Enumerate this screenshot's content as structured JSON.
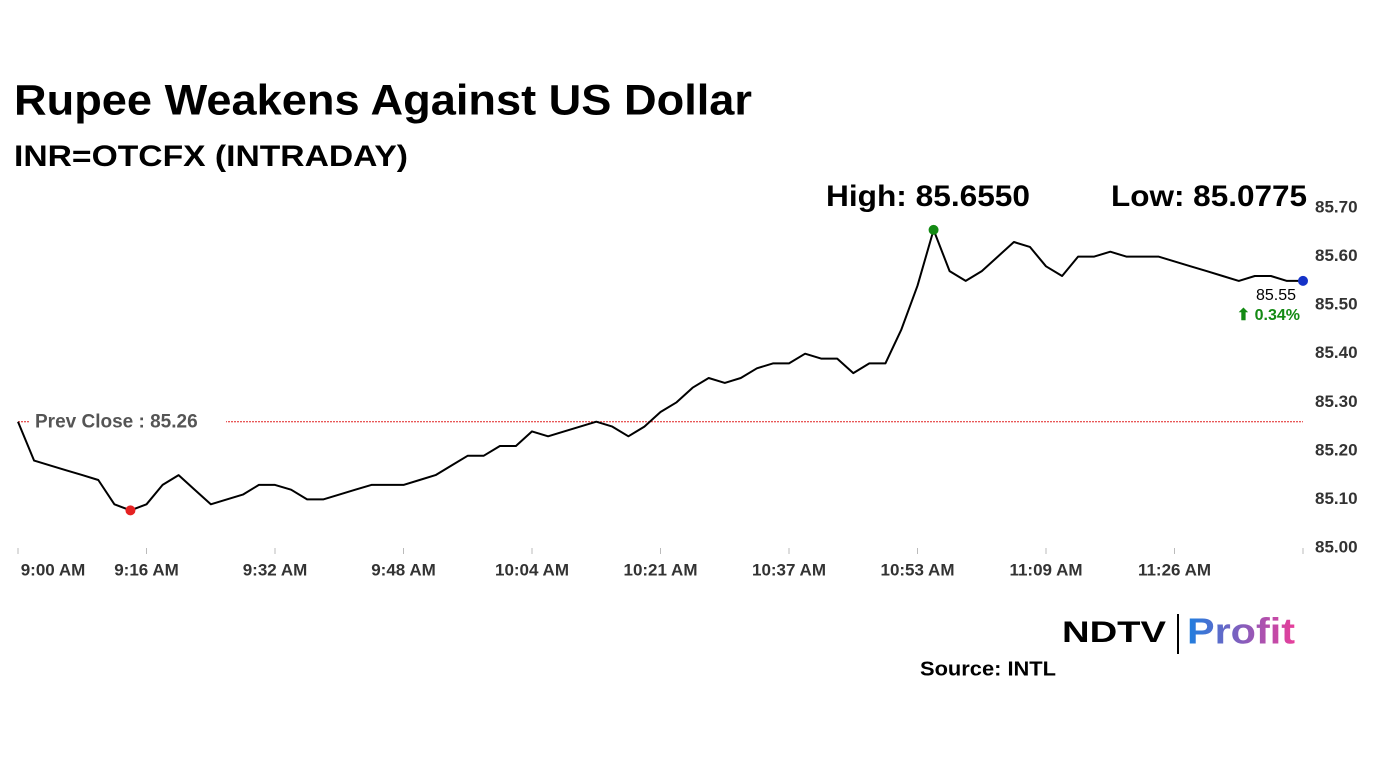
{
  "chart_data": {
    "type": "line",
    "title": "Rupee Weakens Against US Dollar",
    "subtitle": "INR=OTCFX (INTRADAY)",
    "categories": [
      "9:00 AM",
      null,
      null,
      null,
      null,
      null,
      null,
      null,
      "9:16 AM",
      null,
      null,
      null,
      null,
      null,
      null,
      null,
      "9:32 AM",
      null,
      null,
      null,
      null,
      null,
      null,
      null,
      "9:48 AM",
      null,
      null,
      null,
      null,
      null,
      null,
      null,
      "10:04 AM",
      null,
      null,
      null,
      null,
      null,
      null,
      null,
      "10:21 AM",
      null,
      null,
      null,
      null,
      null,
      null,
      null,
      "10:37 AM",
      null,
      null,
      null,
      null,
      null,
      null,
      null,
      "10:53 AM",
      null,
      null,
      null,
      null,
      null,
      null,
      null,
      "11:09 AM",
      null,
      null,
      null,
      null,
      null,
      null,
      null,
      "11:26 AM",
      null,
      null,
      null,
      null,
      null,
      null,
      null,
      null
    ],
    "series": [
      {
        "color": "#000000",
        "values": [
          85.26,
          85.18,
          85.17,
          85.16,
          85.15,
          85.14,
          85.09,
          85.0775,
          85.09,
          85.13,
          85.15,
          85.12,
          85.09,
          85.1,
          85.11,
          85.13,
          85.13,
          85.12,
          85.1,
          85.1,
          85.11,
          85.12,
          85.13,
          85.13,
          85.13,
          85.14,
          85.15,
          85.17,
          85.19,
          85.19,
          85.21,
          85.21,
          85.24,
          85.23,
          85.24,
          85.25,
          85.26,
          85.25,
          85.23,
          85.25,
          85.28,
          85.3,
          85.33,
          85.35,
          85.34,
          85.35,
          85.37,
          85.38,
          85.38,
          85.4,
          85.39,
          85.39,
          85.36,
          85.38,
          85.38,
          85.45,
          85.54,
          85.655,
          85.57,
          85.55,
          85.57,
          85.6,
          85.63,
          85.62,
          85.58,
          85.56,
          85.6,
          85.6,
          85.61,
          85.6,
          85.6,
          85.6,
          85.59,
          85.58,
          85.57,
          85.56,
          85.55,
          85.56,
          85.56,
          85.55,
          85.55
        ]
      }
    ],
    "ylim": [
      85.0,
      85.7
    ],
    "yticks": [
      {
        "value": 85.0,
        "label": "85.00"
      },
      {
        "value": 85.1,
        "label": "85.10"
      },
      {
        "value": 85.2,
        "label": "85.20"
      },
      {
        "value": 85.3,
        "label": "85.30"
      },
      {
        "value": 85.4,
        "label": "85.40"
      },
      {
        "value": 85.5,
        "label": "85.50"
      },
      {
        "value": 85.6,
        "label": "85.60"
      },
      {
        "value": 85.7,
        "label": "85.70"
      }
    ],
    "reference_line": {
      "value": 85.26,
      "label": "Prev Close : 85.26",
      "color": "#e02020"
    },
    "high": {
      "value": 85.655,
      "label": "High: 85.6550",
      "color": "#138a13"
    },
    "low": {
      "value": 85.0775,
      "label": "Low: 85.0775",
      "color": "#e52222"
    },
    "last": {
      "value": 85.55,
      "label": "85.55",
      "change_label": "⬆ 0.34%",
      "color": "#1432c8",
      "change_color": "#138a13"
    },
    "logo": {
      "brand": "NDTV",
      "product": "Profit"
    },
    "source": "Source: INTL"
  }
}
